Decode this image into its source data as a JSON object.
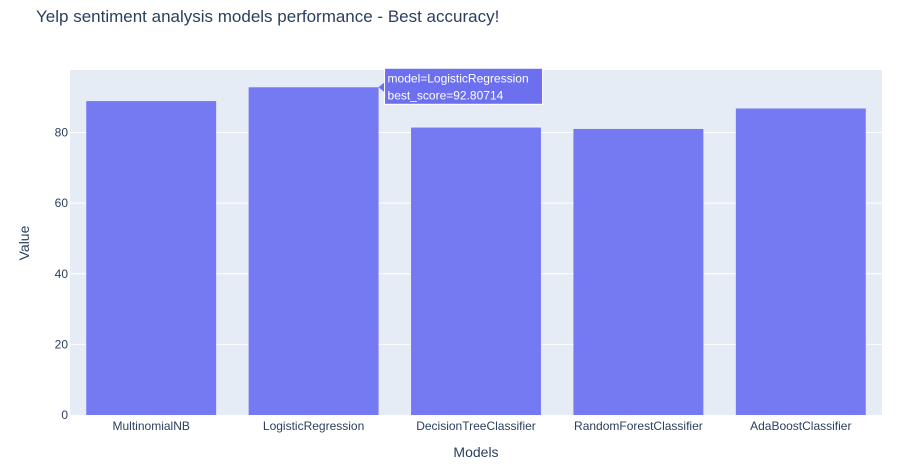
{
  "chart_data": {
    "type": "bar",
    "title": "Yelp sentiment analysis models performance - Best accuracy!",
    "xlabel": "Models",
    "ylabel": "Value",
    "categories": [
      "MultinomialNB",
      "LogisticRegression",
      "DecisionTreeClassifier",
      "RandomForestClassifier",
      "AdaBoostClassifier"
    ],
    "values": [
      88.9,
      92.80714,
      81.4,
      81.0,
      86.8
    ],
    "yticks": [
      0,
      20,
      40,
      60,
      80
    ],
    "ylim": [
      0,
      97.7
    ],
    "grid": true,
    "colors": {
      "bar": "#7579f2",
      "plot_bg": "#e5ecf6",
      "grid": "#ffffff",
      "text": "#2a3f5f",
      "tooltip_bg": "#6c70ee"
    }
  },
  "tooltip": {
    "category_index": 1,
    "line1": "model=LogisticRegression",
    "line2": "best_score=92.80714"
  }
}
